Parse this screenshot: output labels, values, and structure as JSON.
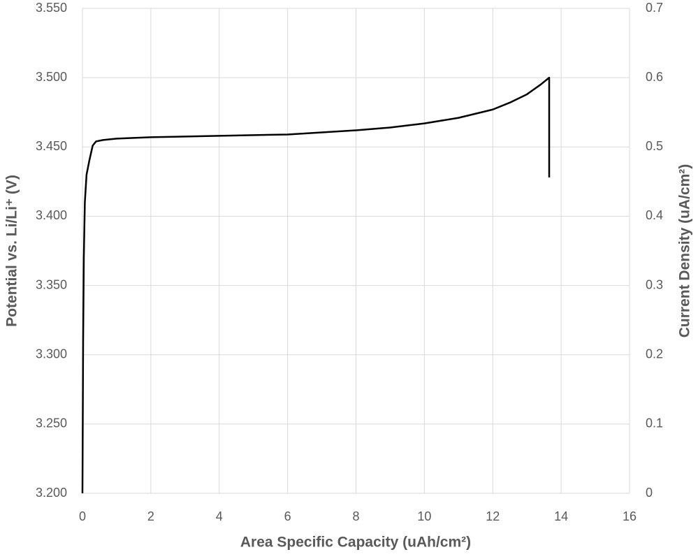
{
  "chart_data": {
    "type": "line",
    "x_label": "Area Specific Capacity  (uAh/cm²)",
    "y_label": "Potential vs. Li/Li⁺ (V)",
    "y2_label": "Current Density (uA/cm²)",
    "xlim": [
      0,
      16
    ],
    "xticks": [
      0,
      2,
      4,
      6,
      8,
      10,
      12,
      14,
      16
    ],
    "ylim": [
      3.2,
      3.55
    ],
    "yticks": [
      {
        "value": 3.2,
        "label": "3.200"
      },
      {
        "value": 3.25,
        "label": "3.250"
      },
      {
        "value": 3.3,
        "label": "3.300"
      },
      {
        "value": 3.35,
        "label": "3.350"
      },
      {
        "value": 3.4,
        "label": "3.400"
      },
      {
        "value": 3.45,
        "label": "3.450"
      },
      {
        "value": 3.5,
        "label": "3.500"
      },
      {
        "value": 3.55,
        "label": "3.550"
      }
    ],
    "y2lim": [
      0,
      0.7
    ],
    "y2ticks": [
      0,
      0.1,
      0.2,
      0.3,
      0.4,
      0.5,
      0.6,
      0.7
    ],
    "grid": true,
    "series": [
      {
        "color": "#000000",
        "x": [
          0,
          0.02,
          0.04,
          0.07,
          0.12,
          0.2,
          0.3,
          0.4,
          0.6,
          1,
          2,
          4,
          6,
          8,
          9,
          10,
          11,
          12,
          12.5,
          13,
          13.4,
          13.65,
          13.65
        ],
        "values": [
          3.2,
          3.31,
          3.37,
          3.41,
          3.43,
          3.44,
          3.451,
          3.454,
          3.455,
          3.456,
          3.457,
          3.458,
          3.459,
          3.462,
          3.464,
          3.467,
          3.471,
          3.477,
          3.482,
          3.488,
          3.495,
          3.5,
          3.428
        ]
      }
    ]
  }
}
